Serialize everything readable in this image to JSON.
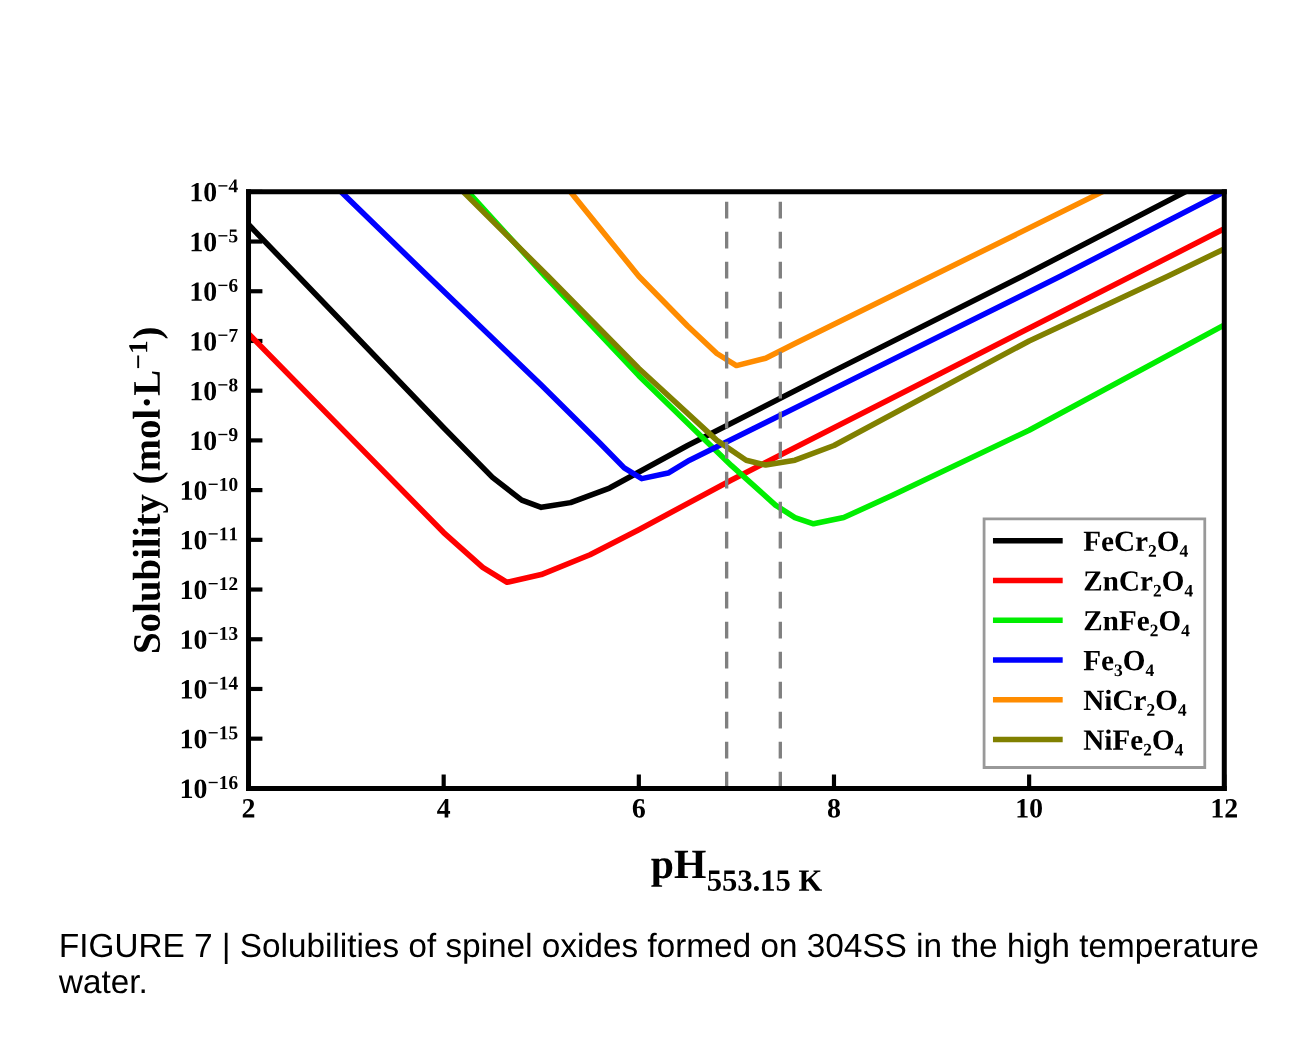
{
  "chart_data": {
    "type": "line",
    "xlabel": "pH$_{553.15 K}$",
    "ylabel": "Solubility (mol·L$^{−1}$)",
    "annotations": [
      "FIGURE 7 | Solubilities of spinel oxides formed on 304SS in the high temperature water."
    ],
    "log": "y",
    "xlim": [
      2,
      12
    ],
    "xticks": [
      2,
      4,
      6,
      8,
      10,
      12
    ],
    "ylim": [
      1e-16,
      0.0001
    ],
    "yticks": [
      {
        "value": 1e-16,
        "label": "10$^{−16}$"
      },
      {
        "value": 1e-15,
        "label": "10$^{−15}$"
      },
      {
        "value": 1e-14,
        "label": "10$^{−14}$"
      },
      {
        "value": 1e-13,
        "label": "10$^{−13}$"
      },
      {
        "value": 1e-12,
        "label": "10$^{−12}$"
      },
      {
        "value": 1e-11,
        "label": "10$^{−11}$"
      },
      {
        "value": 1e-10,
        "label": "10$^{−10}$"
      },
      {
        "value": 1e-09,
        "label": "10$^{−9}$"
      },
      {
        "value": 1e-08,
        "label": "10$^{−8}$"
      },
      {
        "value": 1e-07,
        "label": "10$^{−7}$"
      },
      {
        "value": 1e-06,
        "label": "10$^{−6}$"
      },
      {
        "value": 1e-05,
        "label": "10$^{−5}$"
      },
      {
        "value": 0.0001,
        "label": "10$^{−4}$"
      }
    ],
    "grid": false,
    "legend": "bottom right",
    "marker": "none",
    "line_style": "solid",
    "ref_lines": [
      {
        "axis": "x",
        "value": 6.9,
        "label": null,
        "color": "#808080",
        "line_style": "dashed"
      },
      {
        "axis": "x",
        "value": 7.45,
        "label": null,
        "color": "#808080",
        "line_style": "dashed"
      }
    ],
    "series": [
      {
        "name": "FeCr₂O₄",
        "color": "#000000",
        "x": [
          2,
          3,
          4,
          4.5,
          4.8,
          5.0,
          5.3,
          5.7,
          6.5,
          8,
          9.93,
          11.6
        ],
        "values": [
          2.2e-05,
          2e-07,
          1.8e-09,
          1.8e-10,
          6.3e-11,
          4.5e-11,
          5.6e-11,
          1.1e-10,
          7.9e-10,
          2.5e-08,
          2e-06,
          0.0001
        ]
      },
      {
        "name": "ZnCr₂O₄",
        "color": "#ff0000",
        "x": [
          2,
          3,
          4,
          4.4,
          4.65,
          5.0,
          5.5,
          6,
          6.95,
          9,
          12
        ],
        "values": [
          1.4e-07,
          1.4e-09,
          1.4e-11,
          2.8e-12,
          1.4e-12,
          2e-12,
          5e-12,
          1.6e-11,
          1.6e-10,
          1.8e-08,
          1.8e-05
        ]
      },
      {
        "name": "ZnFe₂O₄",
        "color": "#00ee00",
        "x": [
          4.25,
          5.04,
          6,
          6.95,
          7.4,
          7.6,
          7.79,
          8.1,
          8.6,
          10,
          12
        ],
        "values": [
          0.0001,
          2e-06,
          2e-08,
          3.1e-10,
          5e-11,
          2.8e-11,
          2.1e-11,
          2.8e-11,
          7.9e-11,
          1.6e-09,
          2.1e-07
        ]
      },
      {
        "name": "Fe₃O₄",
        "color": "#0000ff",
        "x": [
          2.95,
          3.84,
          5.0,
          5.6,
          5.85,
          6.03,
          6.3,
          6.52,
          8,
          10.32,
          12
        ],
        "values": [
          0.0001,
          2e-06,
          1.3e-08,
          8.9e-10,
          2.8e-10,
          1.7e-10,
          2.2e-10,
          4e-10,
          1.1e-08,
          2e-06,
          0.0001
        ]
      },
      {
        "name": "NiCr₂O₄",
        "color": "#ff8c00",
        "x": [
          5.3,
          6.0,
          6.5,
          6.8,
          7.0,
          7.3,
          7.6,
          9.0,
          10.75
        ],
        "values": [
          0.0001,
          2e-06,
          2e-07,
          5.6e-08,
          3.2e-08,
          4.5e-08,
          8.9e-08,
          2e-06,
          0.0001
        ]
      },
      {
        "name": "NiFe₂O₄",
        "color": "#808000",
        "x": [
          4.2,
          5.07,
          6,
          6.8,
          7.1,
          7.3,
          7.6,
          8,
          10,
          11.42,
          12
        ],
        "values": [
          0.0001,
          2e-06,
          2.8e-08,
          1e-09,
          4e-10,
          3.2e-10,
          4e-10,
          7.9e-10,
          1e-07,
          2e-06,
          7.1e-06
        ]
      }
    ]
  }
}
